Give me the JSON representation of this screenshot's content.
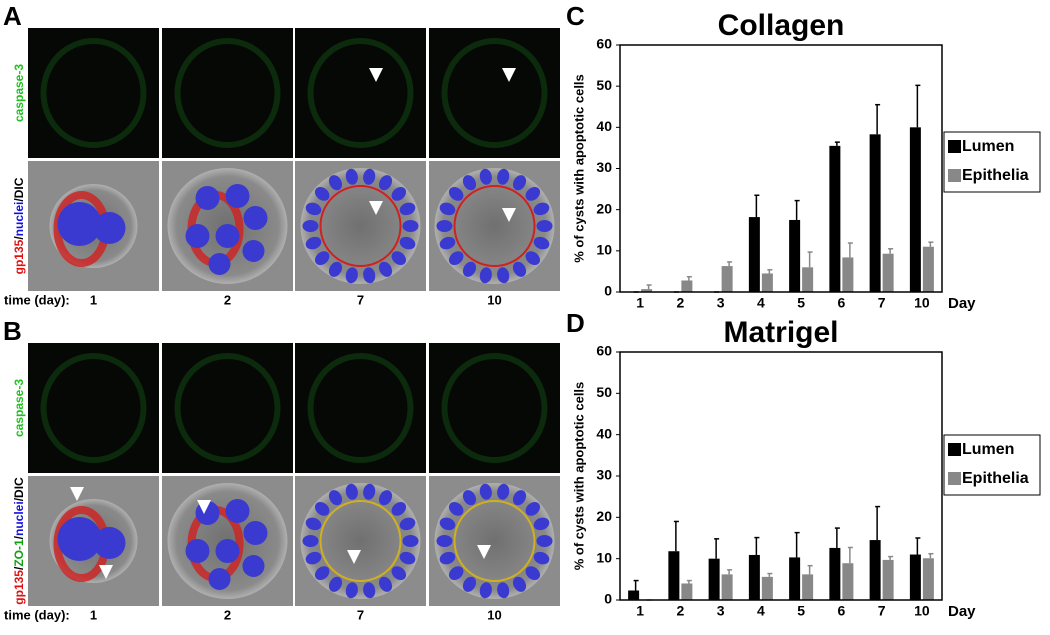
{
  "panels": [
    {
      "label": "A",
      "top_label": "caspase-3",
      "bottom_label": [
        {
          "text": "gp135",
          "color": "#e01010"
        },
        {
          "text": "/",
          "color": "#000000"
        },
        {
          "text": "nuclei",
          "color": "#1010e0"
        },
        {
          "text": "/DIC",
          "color": "#000000"
        }
      ],
      "time_label": "time (day):",
      "days": [
        "1",
        "2",
        "7",
        "10"
      ]
    },
    {
      "label": "B",
      "top_label": "caspase-3",
      "bottom_label": [
        {
          "text": "gp135",
          "color": "#e01010"
        },
        {
          "text": "/",
          "color": "#000000"
        },
        {
          "text": "ZO-1",
          "color": "#10a010"
        },
        {
          "text": "/",
          "color": "#000000"
        },
        {
          "text": "nuclei",
          "color": "#1010e0"
        },
        {
          "text": "/DIC",
          "color": "#000000"
        }
      ],
      "time_label": "time (day):",
      "days": [
        "1",
        "2",
        "7",
        "10"
      ]
    }
  ],
  "chart_data": [
    {
      "type": "bar",
      "panel": "C",
      "title": "Collagen",
      "y_label": "% of cysts with apoptotic cells",
      "x_label": "Day",
      "categories": [
        "1",
        "2",
        "3",
        "4",
        "5",
        "6",
        "7",
        "10"
      ],
      "series": [
        {
          "name": "Lumen",
          "color": "#000000",
          "values": [
            0,
            0,
            0,
            18.2,
            17.5,
            35.5,
            38.3,
            40
          ],
          "errors": [
            0,
            0,
            0,
            5.3,
            4.7,
            0.9,
            7.2,
            10.2
          ]
        },
        {
          "name": "Epithelia",
          "color": "#888888",
          "values": [
            0.7,
            2.8,
            6.3,
            4.5,
            6,
            8.4,
            9.3,
            11
          ],
          "errors": [
            1,
            0.9,
            1,
            0.9,
            3.7,
            3.5,
            1.2,
            1.1
          ]
        }
      ],
      "ylim": [
        0,
        60
      ],
      "yticks": [
        0,
        10,
        20,
        30,
        40,
        50,
        60
      ]
    },
    {
      "type": "bar",
      "panel": "D",
      "title": "Matrigel",
      "y_label": "% of cysts with apoptotic cells",
      "x_label": "Day",
      "categories": [
        "1",
        "2",
        "3",
        "4",
        "5",
        "6",
        "7",
        "10"
      ],
      "series": [
        {
          "name": "Lumen",
          "color": "#000000",
          "values": [
            2.3,
            11.8,
            10,
            10.9,
            10.3,
            12.6,
            14.5,
            11
          ],
          "errors": [
            2.4,
            7.2,
            4.8,
            4.2,
            6,
            4.8,
            8.1,
            4
          ]
        },
        {
          "name": "Epithelia",
          "color": "#888888",
          "values": [
            0,
            4,
            6.2,
            5.6,
            6.2,
            8.9,
            9.7,
            10.1
          ],
          "errors": [
            0,
            0.7,
            1.1,
            0.8,
            2.1,
            3.8,
            0.8,
            1.1
          ]
        }
      ],
      "ylim": [
        0,
        60
      ],
      "yticks": [
        0,
        10,
        20,
        30,
        40,
        50,
        60
      ]
    }
  ]
}
